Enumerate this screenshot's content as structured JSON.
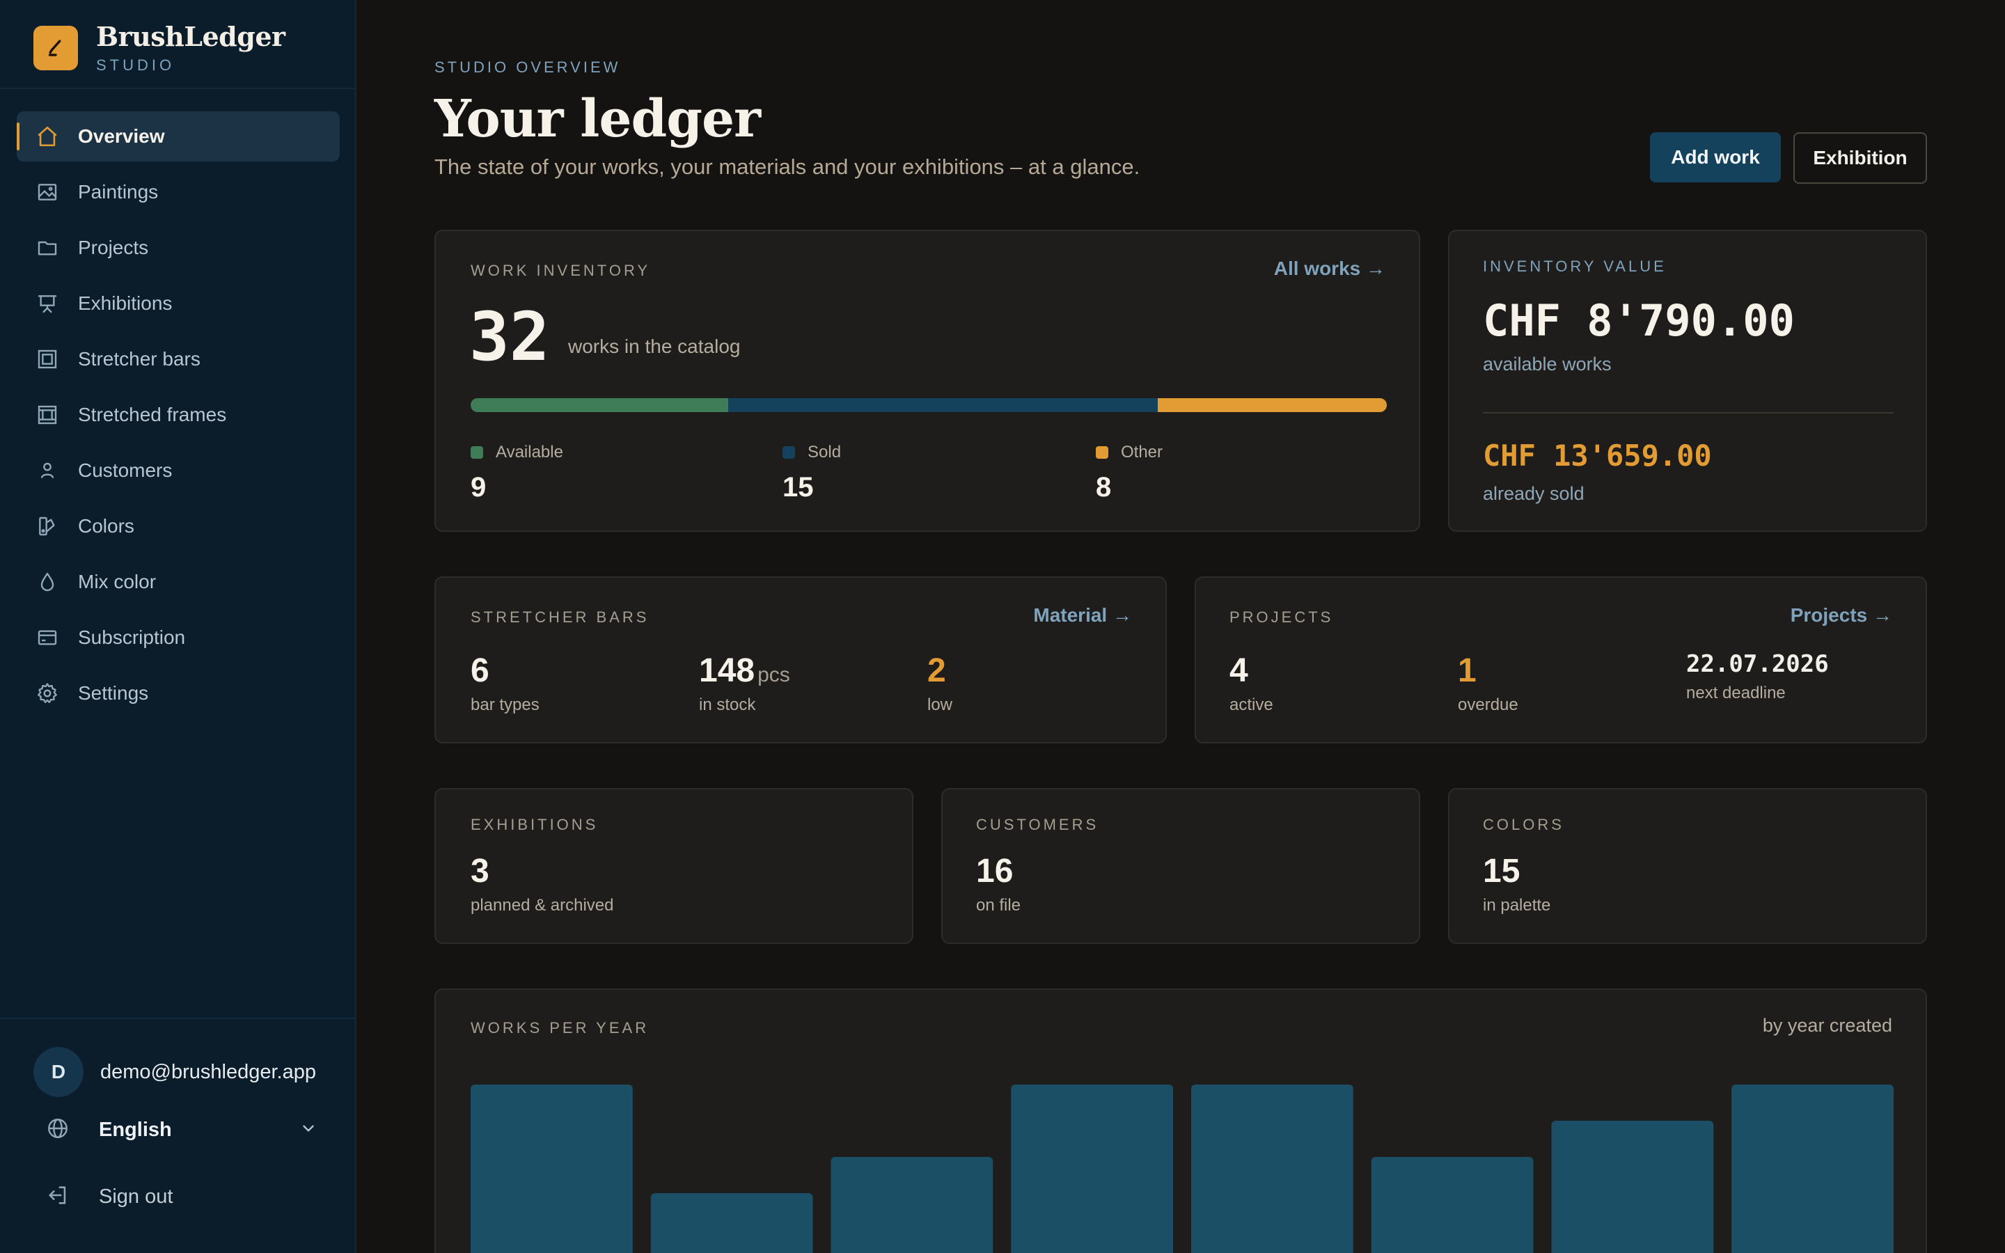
{
  "brand": {
    "name": "BrushLedger",
    "sub": "STUDIO"
  },
  "nav": [
    {
      "label": "Overview",
      "icon": "home-icon",
      "active": true
    },
    {
      "label": "Paintings",
      "icon": "image-icon"
    },
    {
      "label": "Projects",
      "icon": "folder-icon"
    },
    {
      "label": "Exhibitions",
      "icon": "easel-icon"
    },
    {
      "label": "Stretcher bars",
      "icon": "frame-icon"
    },
    {
      "label": "Stretched frames",
      "icon": "canvas-frame-icon"
    },
    {
      "label": "Customers",
      "icon": "person-icon"
    },
    {
      "label": "Colors",
      "icon": "swatch-icon"
    },
    {
      "label": "Mix color",
      "icon": "drop-icon"
    },
    {
      "label": "Subscription",
      "icon": "card-icon"
    },
    {
      "label": "Settings",
      "icon": "gear-icon"
    }
  ],
  "user": {
    "initial": "D",
    "email": "demo@brushledger.app"
  },
  "language": {
    "label": "English"
  },
  "signout": {
    "label": "Sign out"
  },
  "header": {
    "eyebrow": "STUDIO OVERVIEW",
    "title": "Your ledger",
    "subtitle": "The state of your works, your materials and your exhibitions – at a glance.",
    "add_work": "Add work",
    "exhibition": "Exhibition"
  },
  "inventory": {
    "label": "WORK INVENTORY",
    "link": "All works →",
    "total": "32",
    "total_caption": "works in the catalog",
    "segments": [
      {
        "name": "Available",
        "value": 9,
        "color": "#3f7d58"
      },
      {
        "name": "Sold",
        "value": 15,
        "color": "#14425c"
      },
      {
        "name": "Other",
        "value": 8,
        "color": "#e39c34"
      }
    ]
  },
  "value": {
    "label": "INVENTORY VALUE",
    "available_amount": "CHF 8'790.00",
    "available_caption": "available works",
    "sold_amount": "CHF 13'659.00",
    "sold_caption": "already sold"
  },
  "stretcher": {
    "label": "STRETCHER BARS",
    "link": "Material →",
    "types": "6",
    "types_label": "bar types",
    "stock": "148",
    "stock_unit": "pcs",
    "stock_label": "in stock",
    "low": "2",
    "low_label": "low"
  },
  "projects": {
    "label": "PROJECTS",
    "link": "Projects →",
    "active": "4",
    "active_label": "active",
    "overdue": "1",
    "overdue_label": "overdue",
    "deadline": "22.07.2026",
    "deadline_label": "next deadline"
  },
  "exhibitions": {
    "label": "EXHIBITIONS",
    "value": "3",
    "caption": "planned & archived"
  },
  "customers": {
    "label": "CUSTOMERS",
    "value": "16",
    "caption": "on file"
  },
  "colors": {
    "label": "COLORS",
    "value": "15",
    "caption": "in palette"
  },
  "works_per_year": {
    "label": "WORKS PER YEAR",
    "right_label": "by year created"
  },
  "chart_data": {
    "type": "bar",
    "categories": [
      "",
      "",
      "",
      "",
      "",
      "",
      "",
      ""
    ],
    "values": [
      5,
      2,
      3,
      5,
      5,
      3,
      4,
      5
    ],
    "ylim": [
      0,
      5
    ],
    "color": "#1b4f66",
    "title": "WORKS PER YEAR",
    "xlabel": "",
    "ylabel": ""
  }
}
